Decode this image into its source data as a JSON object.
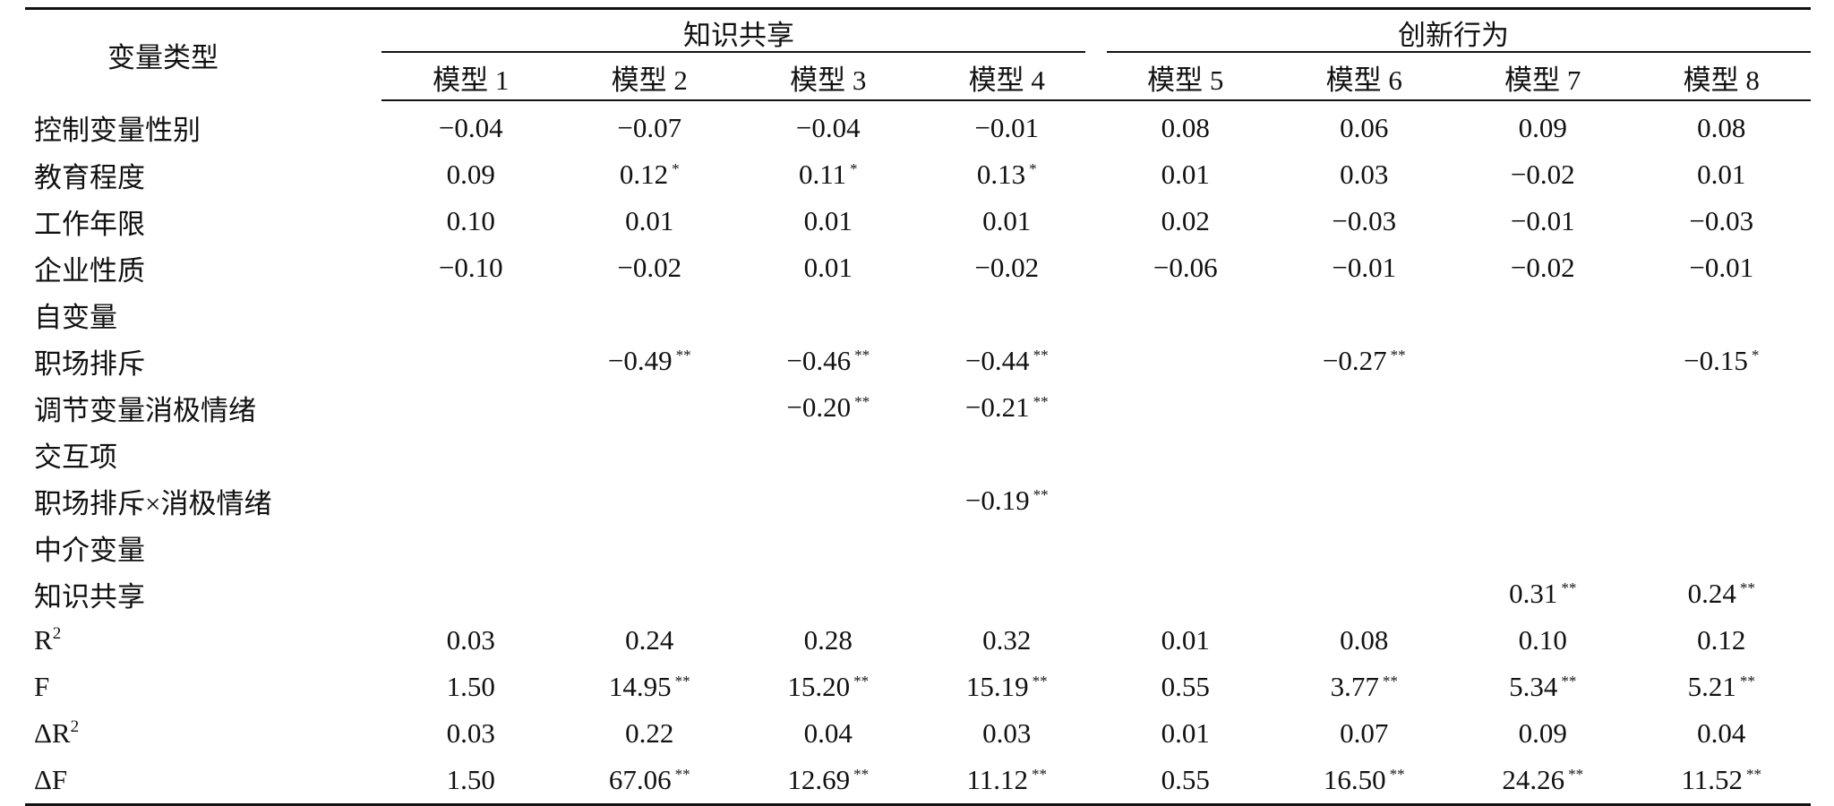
{
  "header": {
    "label": "变量类型",
    "groups": [
      "知识共享",
      "创新行为"
    ],
    "models": [
      "模型 1",
      "模型 2",
      "模型 3",
      "模型 4",
      "模型 5",
      "模型 6",
      "模型 7",
      "模型 8"
    ]
  },
  "rows": [
    {
      "label": "控制变量性别",
      "cells": [
        [
          "−0.04",
          ""
        ],
        [
          "−0.07",
          ""
        ],
        [
          "−0.04",
          ""
        ],
        [
          "−0.01",
          ""
        ],
        [
          "0.08",
          ""
        ],
        [
          "0.06",
          ""
        ],
        [
          "0.09",
          ""
        ],
        [
          "0.08",
          ""
        ]
      ]
    },
    {
      "label": "教育程度",
      "cells": [
        [
          "0.09",
          ""
        ],
        [
          "0.12",
          "*"
        ],
        [
          "0.11",
          "*"
        ],
        [
          "0.13",
          "*"
        ],
        [
          "0.01",
          ""
        ],
        [
          "0.03",
          ""
        ],
        [
          "−0.02",
          ""
        ],
        [
          "0.01",
          ""
        ]
      ]
    },
    {
      "label": "工作年限",
      "cells": [
        [
          "0.10",
          ""
        ],
        [
          "0.01",
          ""
        ],
        [
          "0.01",
          ""
        ],
        [
          "0.01",
          ""
        ],
        [
          "0.02",
          ""
        ],
        [
          "−0.03",
          ""
        ],
        [
          "−0.01",
          ""
        ],
        [
          "−0.03",
          ""
        ]
      ]
    },
    {
      "label": "企业性质",
      "cells": [
        [
          "−0.10",
          ""
        ],
        [
          "−0.02",
          ""
        ],
        [
          "0.01",
          ""
        ],
        [
          "−0.02",
          ""
        ],
        [
          "−0.06",
          ""
        ],
        [
          "−0.01",
          ""
        ],
        [
          "−0.02",
          ""
        ],
        [
          "−0.01",
          ""
        ]
      ]
    },
    {
      "label": "自变量",
      "cells": [
        [
          "",
          ""
        ],
        [
          "",
          ""
        ],
        [
          "",
          ""
        ],
        [
          "",
          ""
        ],
        [
          "",
          ""
        ],
        [
          "",
          ""
        ],
        [
          "",
          ""
        ],
        [
          "",
          ""
        ]
      ]
    },
    {
      "label": "职场排斥",
      "cells": [
        [
          "",
          ""
        ],
        [
          "−0.49",
          "**"
        ],
        [
          "−0.46",
          "**"
        ],
        [
          "−0.44",
          "**"
        ],
        [
          "",
          ""
        ],
        [
          "−0.27",
          "**"
        ],
        [
          "",
          ""
        ],
        [
          "−0.15",
          "*"
        ]
      ]
    },
    {
      "label": "调节变量消极情绪",
      "cells": [
        [
          "",
          ""
        ],
        [
          "",
          ""
        ],
        [
          "−0.20",
          "**"
        ],
        [
          "−0.21",
          "**"
        ],
        [
          "",
          ""
        ],
        [
          "",
          ""
        ],
        [
          "",
          ""
        ],
        [
          "",
          ""
        ]
      ]
    },
    {
      "label": "交互项",
      "cells": [
        [
          "",
          ""
        ],
        [
          "",
          ""
        ],
        [
          "",
          ""
        ],
        [
          "",
          ""
        ],
        [
          "",
          ""
        ],
        [
          "",
          ""
        ],
        [
          "",
          ""
        ],
        [
          "",
          ""
        ]
      ]
    },
    {
      "label": "职场排斥×消极情绪",
      "cells": [
        [
          "",
          ""
        ],
        [
          "",
          ""
        ],
        [
          "",
          ""
        ],
        [
          "−0.19",
          "**"
        ],
        [
          "",
          ""
        ],
        [
          "",
          ""
        ],
        [
          "",
          ""
        ],
        [
          "",
          ""
        ]
      ]
    },
    {
      "label": "中介变量",
      "cells": [
        [
          "",
          ""
        ],
        [
          "",
          ""
        ],
        [
          "",
          ""
        ],
        [
          "",
          ""
        ],
        [
          "",
          ""
        ],
        [
          "",
          ""
        ],
        [
          "",
          ""
        ],
        [
          "",
          ""
        ]
      ]
    },
    {
      "label": "知识共享",
      "cells": [
        [
          "",
          ""
        ],
        [
          "",
          ""
        ],
        [
          "",
          ""
        ],
        [
          "",
          ""
        ],
        [
          "",
          ""
        ],
        [
          "",
          ""
        ],
        [
          "0.31",
          "**"
        ],
        [
          "0.24",
          "**"
        ]
      ]
    },
    {
      "label": "R",
      "exp": "2",
      "cells": [
        [
          "0.03",
          ""
        ],
        [
          "0.24",
          ""
        ],
        [
          "0.28",
          ""
        ],
        [
          "0.32",
          ""
        ],
        [
          "0.01",
          ""
        ],
        [
          "0.08",
          ""
        ],
        [
          "0.10",
          ""
        ],
        [
          "0.12",
          ""
        ]
      ]
    },
    {
      "label": "F",
      "cells": [
        [
          "1.50",
          ""
        ],
        [
          "14.95",
          "**"
        ],
        [
          "15.20",
          "**"
        ],
        [
          "15.19",
          "**"
        ],
        [
          "0.55",
          ""
        ],
        [
          "3.77",
          "**"
        ],
        [
          "5.34",
          "**"
        ],
        [
          "5.21",
          "**"
        ]
      ]
    },
    {
      "label": "ΔR",
      "exp": "2",
      "cells": [
        [
          "0.03",
          ""
        ],
        [
          "0.22",
          ""
        ],
        [
          "0.04",
          ""
        ],
        [
          "0.03",
          ""
        ],
        [
          "0.01",
          ""
        ],
        [
          "0.07",
          ""
        ],
        [
          "0.09",
          ""
        ],
        [
          "0.04",
          ""
        ]
      ]
    },
    {
      "label": "ΔF",
      "cells": [
        [
          "1.50",
          ""
        ],
        [
          "67.06",
          "**"
        ],
        [
          "12.69",
          "**"
        ],
        [
          "11.12",
          "**"
        ],
        [
          "0.55",
          ""
        ],
        [
          "16.50",
          "**"
        ],
        [
          "24.26",
          "**"
        ],
        [
          "11.52",
          "**"
        ]
      ]
    }
  ]
}
